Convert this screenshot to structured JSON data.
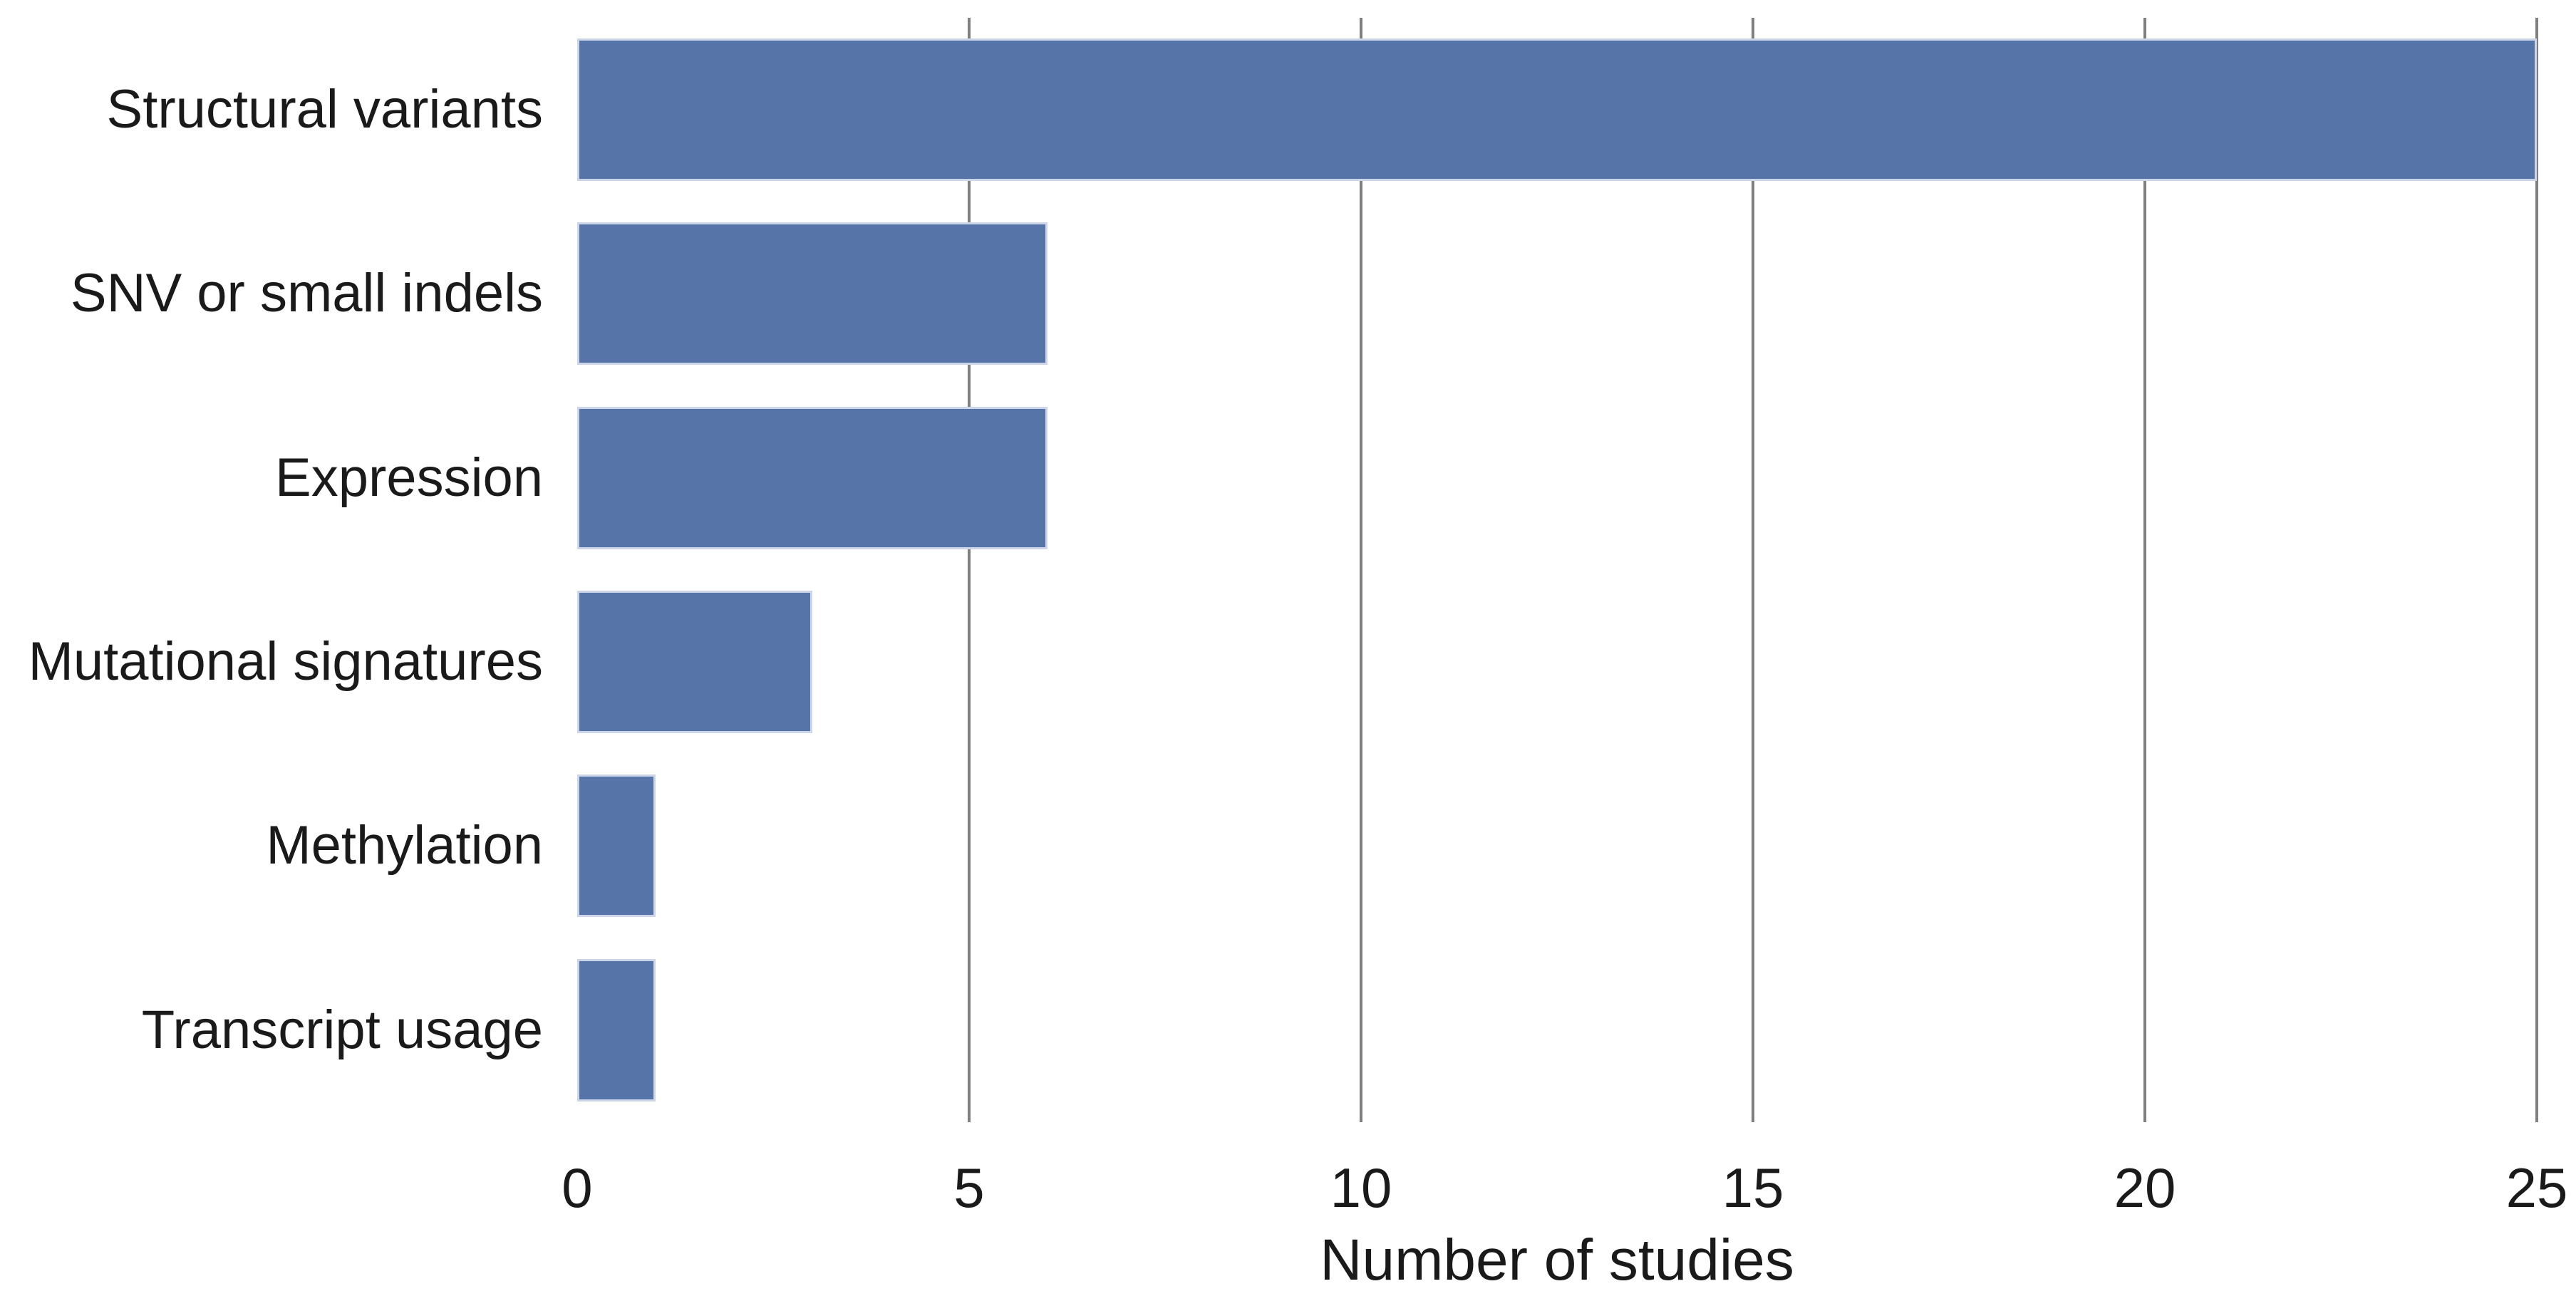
{
  "chart_data": {
    "type": "bar",
    "orientation": "horizontal",
    "title": "",
    "xlabel": "Number of studies",
    "ylabel": "",
    "categories": [
      "Structural variants",
      "SNV or small indels",
      "Expression",
      "Mutational signatures",
      "Methylation",
      "Transcript usage"
    ],
    "values": [
      25,
      6,
      6,
      3,
      1,
      1
    ],
    "xlim": [
      0,
      25
    ],
    "xticks": [
      0,
      5,
      10,
      15,
      20,
      25
    ],
    "grid": true,
    "gridline_ticks": [
      5,
      10,
      15,
      20,
      25
    ],
    "legend": "none",
    "colors": {
      "bar": "#5674a8",
      "gridline": "#7f7f7f",
      "text": "#1a1a1a",
      "background": "#ffffff"
    }
  }
}
